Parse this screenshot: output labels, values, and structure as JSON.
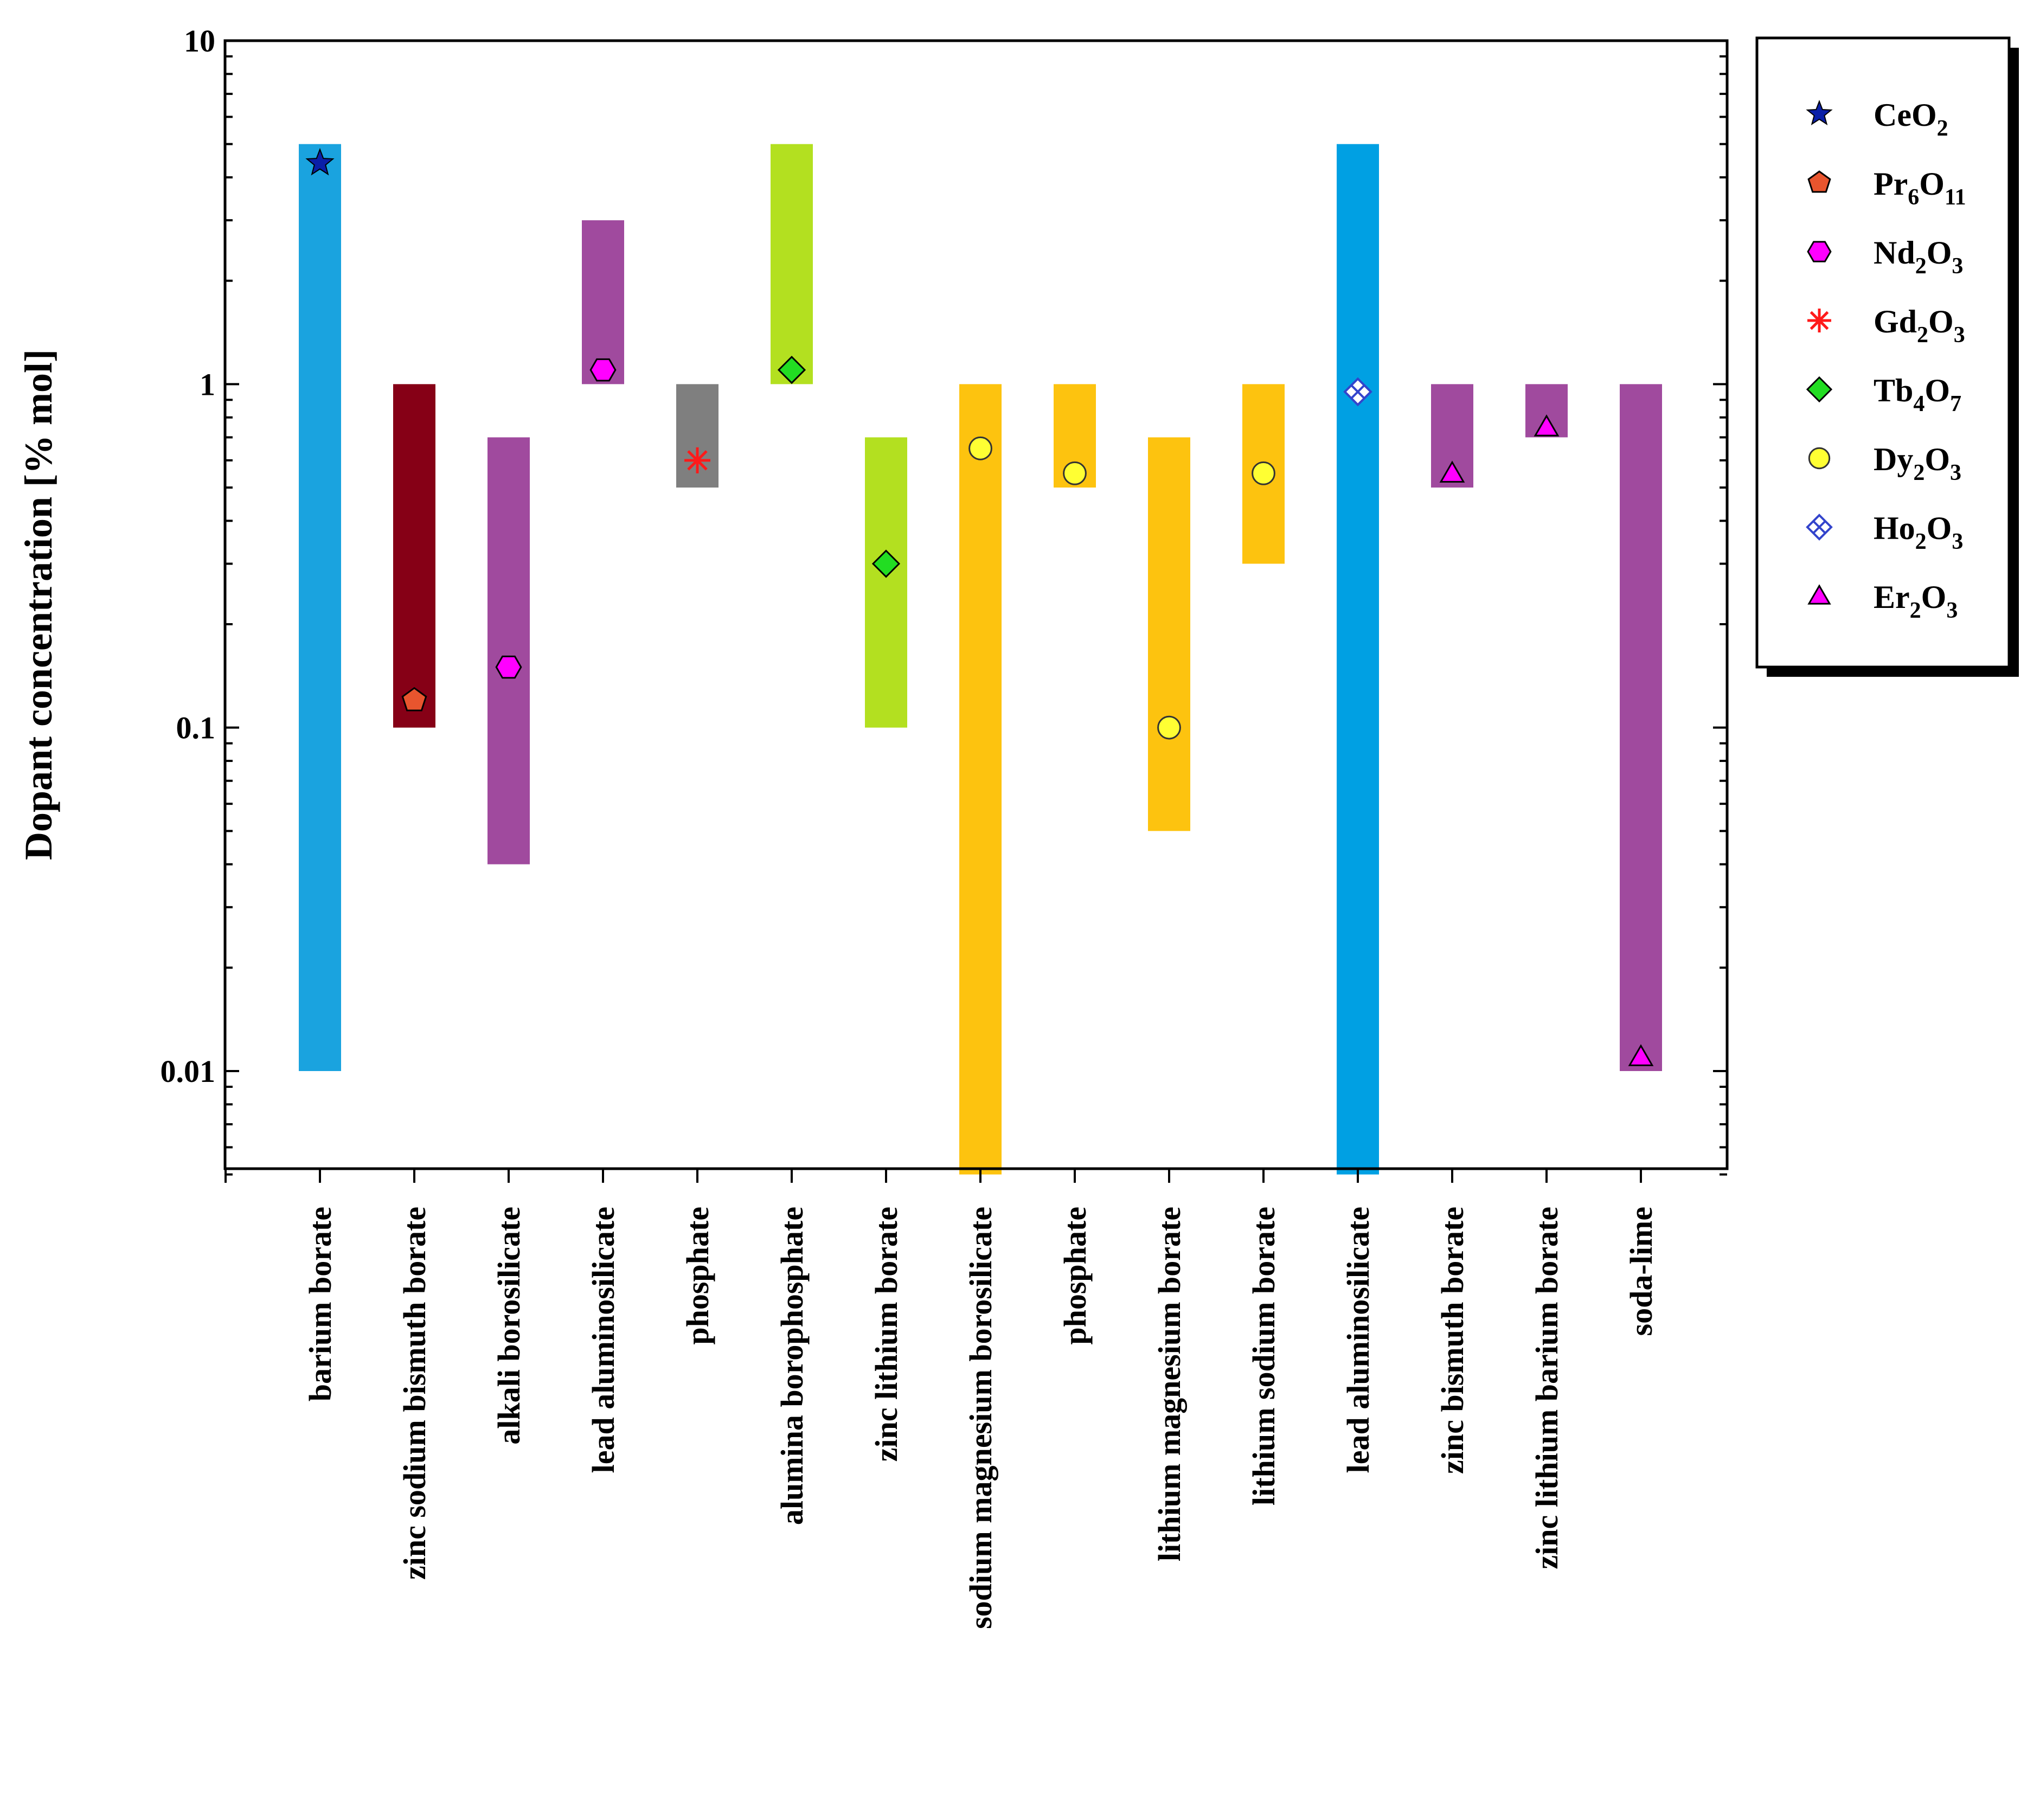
{
  "chart_data": {
    "type": "range-bar",
    "title": "",
    "xlabel": "",
    "ylabel": "Dopant concentration [% mol]",
    "yscale": "log",
    "ylim": [
      0.005,
      10
    ],
    "yticks": [
      {
        "value": 10,
        "label": "10"
      },
      {
        "value": 1,
        "label": "1"
      },
      {
        "value": 0.1,
        "label": "0.1"
      },
      {
        "value": 0.01,
        "label": "0.01"
      }
    ],
    "grid": false,
    "legend_position": "outside-right",
    "categories": [
      "barium borate",
      "zinc sodium bismuth borate",
      "alkali borosilicate",
      "lead aluminosilicate",
      "phosphate",
      "alumina borophosphate",
      "zinc lithium borate",
      "sodium magnesium borosilicate",
      "phosphate",
      "lithium magnesium borate",
      "lithium sodium borate",
      "lead aluminosilicate",
      "zinc bismuth borate",
      "zinc lithium barium borate",
      "soda-lime"
    ],
    "ranges": [
      {
        "low": 0.01,
        "high": 5.0,
        "color": "#1AA3DF"
      },
      {
        "low": 0.1,
        "high": 1.0,
        "color": "#860016"
      },
      {
        "low": 0.04,
        "high": 0.7,
        "color": "#A04A9E"
      },
      {
        "low": 1.0,
        "high": 3.0,
        "color": "#A04A9E"
      },
      {
        "low": 0.5,
        "high": 1.0,
        "color": "#7F7F7F"
      },
      {
        "low": 1.0,
        "high": 5.0,
        "color": "#B3E020"
      },
      {
        "low": 0.1,
        "high": 0.7,
        "color": "#B3E020"
      },
      {
        "low": 0.005,
        "high": 1.0,
        "color": "#FDC30F"
      },
      {
        "low": 0.5,
        "high": 1.0,
        "color": "#FDC30F"
      },
      {
        "low": 0.05,
        "high": 0.7,
        "color": "#FDC30F"
      },
      {
        "low": 0.3,
        "high": 1.0,
        "color": "#FDC30F"
      },
      {
        "low": 0.005,
        "high": 5.0,
        "color": "#00A0E3"
      },
      {
        "low": 0.5,
        "high": 1.0,
        "color": "#A04A9E"
      },
      {
        "low": 0.7,
        "high": 1.0,
        "color": "#A04A9E"
      },
      {
        "low": 0.01,
        "high": 1.0,
        "color": "#A04A9E"
      }
    ],
    "points": [
      {
        "category_index": 0,
        "value": 4.4,
        "dopant": "CeO2"
      },
      {
        "category_index": 1,
        "value": 0.12,
        "dopant": "Pr6O11"
      },
      {
        "category_index": 2,
        "value": 0.15,
        "dopant": "Nd2O3"
      },
      {
        "category_index": 3,
        "value": 1.1,
        "dopant": "Nd2O3"
      },
      {
        "category_index": 4,
        "value": 0.6,
        "dopant": "Gd2O3"
      },
      {
        "category_index": 5,
        "value": 1.1,
        "dopant": "Tb4O7"
      },
      {
        "category_index": 6,
        "value": 0.3,
        "dopant": "Tb4O7"
      },
      {
        "category_index": 7,
        "value": 0.65,
        "dopant": "Dy2O3"
      },
      {
        "category_index": 8,
        "value": 0.55,
        "dopant": "Dy2O3"
      },
      {
        "category_index": 9,
        "value": 0.1,
        "dopant": "Dy2O3"
      },
      {
        "category_index": 10,
        "value": 0.55,
        "dopant": "Dy2O3"
      },
      {
        "category_index": 11,
        "value": 0.95,
        "dopant": "Ho2O3"
      },
      {
        "category_index": 12,
        "value": 0.55,
        "dopant": "Er2O3"
      },
      {
        "category_index": 13,
        "value": 0.75,
        "dopant": "Er2O3"
      },
      {
        "category_index": 14,
        "value": 0.011,
        "dopant": "Er2O3"
      }
    ],
    "legend": [
      {
        "id": "CeO2",
        "base": "CeO",
        "sub": "2",
        "marker": "star",
        "color": "#0A1FA8"
      },
      {
        "id": "Pr6O11",
        "base": "Pr",
        "sub": "6",
        "base2": "O",
        "sub2": "11",
        "marker": "pentagon",
        "color": "#E8552E"
      },
      {
        "id": "Nd2O3",
        "base": "Nd",
        "sub": "2",
        "base2": "O",
        "sub2": "3",
        "marker": "hexagon",
        "color": "#FF00FF"
      },
      {
        "id": "Gd2O3",
        "base": "Gd",
        "sub": "2",
        "base2": "O",
        "sub2": "3",
        "marker": "asterisk",
        "color": "#FF1A1A"
      },
      {
        "id": "Tb4O7",
        "base": "Tb",
        "sub": "4",
        "base2": "O",
        "sub2": "7",
        "marker": "diamond",
        "color": "#22DD22"
      },
      {
        "id": "Dy2O3",
        "base": "Dy",
        "sub": "2",
        "base2": "O",
        "sub2": "3",
        "marker": "circle",
        "color": "#FFFF33"
      },
      {
        "id": "Ho2O3",
        "base": "Ho",
        "sub": "2",
        "base2": "O",
        "sub2": "3",
        "marker": "crossed-diamond",
        "color": "#3344CC"
      },
      {
        "id": "Er2O3",
        "base": "Er",
        "sub": "2",
        "base2": "O",
        "sub2": "3",
        "marker": "triangle",
        "color": "#FF00FF"
      }
    ]
  }
}
